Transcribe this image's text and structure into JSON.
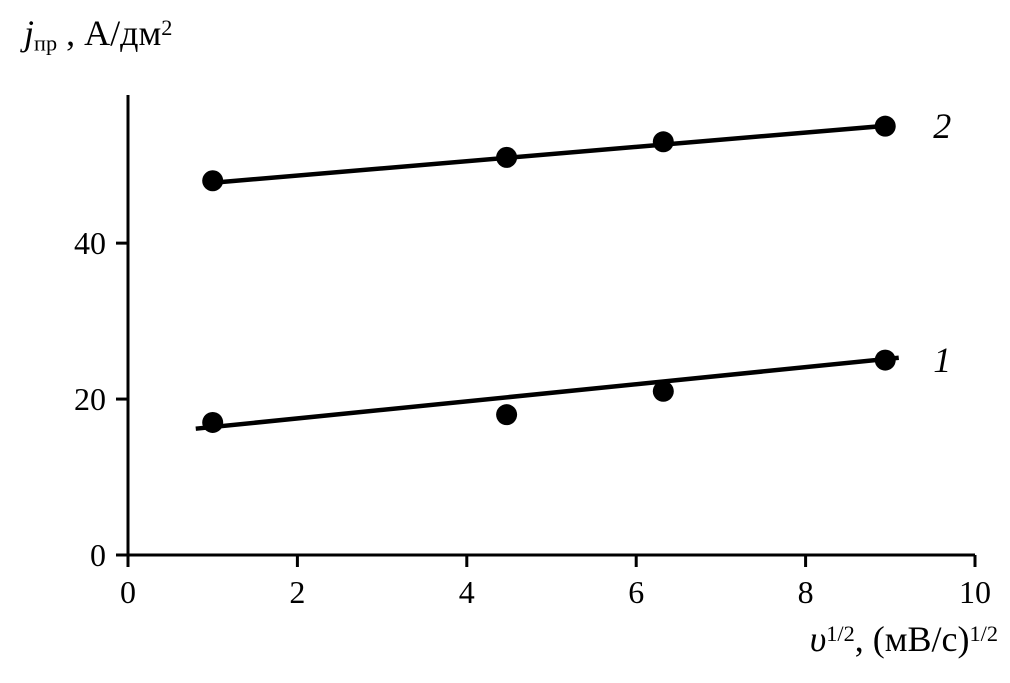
{
  "figure": {
    "background": "#ffffff"
  },
  "labels": {
    "y_var": "j",
    "y_sub": "пр",
    "y_mid": " , А/дм",
    "y_sup": "2",
    "x_var": "υ",
    "x_sup1": "1/2",
    "x_mid": ", (мВ/с)",
    "x_sup2": "1/2"
  },
  "chart_data": {
    "type": "scatter",
    "title": "",
    "xlabel": "υ^(1/2), (мВ/с)^(1/2)",
    "ylabel": "j_пр , А/дм^2",
    "xlim": [
      0,
      10
    ],
    "ylim": [
      0,
      59
    ],
    "xticks": [
      0,
      2,
      4,
      6,
      8,
      10
    ],
    "yticks": [
      0,
      20,
      40
    ],
    "grid": false,
    "legend_position": "right-of-line-end",
    "marker_color": "#000000",
    "line_color": "#000000",
    "series": [
      {
        "name": "1",
        "x": [
          1.0,
          4.47,
          6.32,
          8.94
        ],
        "y": [
          17,
          18,
          21,
          25
        ],
        "trendline": {
          "x": [
            0.8,
            9.1
          ],
          "y": [
            16.2,
            25.3
          ]
        }
      },
      {
        "name": "2",
        "x": [
          1.0,
          4.47,
          6.32,
          8.94
        ],
        "y": [
          48,
          51,
          53,
          55
        ],
        "trendline": {
          "x": [
            0.95,
            9.0
          ],
          "y": [
            47.7,
            55.1
          ]
        }
      }
    ]
  }
}
